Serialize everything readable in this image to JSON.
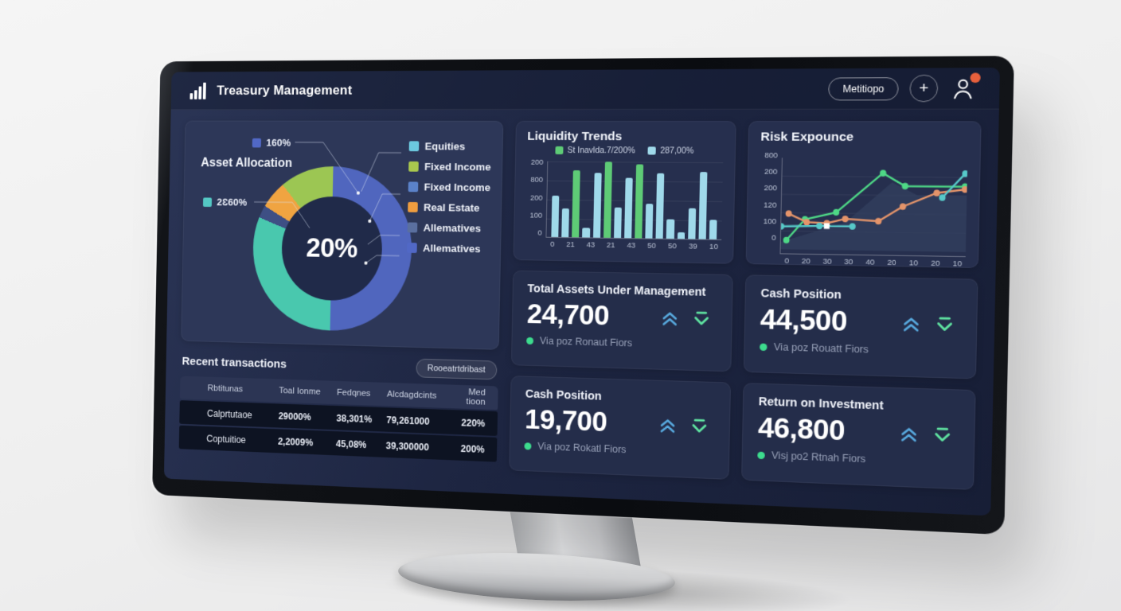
{
  "topbar": {
    "title": "Treasury Management",
    "pill_button": "Metitiopo",
    "plus_button": "+"
  },
  "asset_allocation": {
    "title": "Asset Allocation",
    "center_value": "20%",
    "callouts": [
      {
        "label": "160%",
        "color": "#5168c6"
      },
      {
        "label": "2Ɛ60%",
        "color": "#54c8c4"
      }
    ],
    "legend": [
      {
        "label": "Equities",
        "color": "#6cc9df"
      },
      {
        "label": "Fixed Income",
        "color": "#a9c84e"
      },
      {
        "label": "Fixed Income",
        "color": "#5b82c9"
      },
      {
        "label": "Real Estate",
        "color": "#ef9d3f"
      },
      {
        "label": "Allematives",
        "color": "#5a6f9f"
      },
      {
        "label": "Allematives",
        "color": "#5168c6"
      }
    ]
  },
  "chart_data": [
    {
      "id": "asset_allocation_donut",
      "type": "pie",
      "title": "Asset Allocation",
      "center_label": "20%",
      "segments": [
        {
          "name": "blue",
          "value": 50,
          "color": "#5066be"
        },
        {
          "name": "teal",
          "value": 31,
          "color": "#49c8ae"
        },
        {
          "name": "slate",
          "value": 2.5,
          "color": "#3e4f84"
        },
        {
          "name": "orange",
          "value": 5.5,
          "color": "#f0a441"
        },
        {
          "name": "green",
          "value": 11,
          "color": "#9cc653"
        }
      ]
    },
    {
      "id": "liquidity_trends",
      "type": "bar",
      "title": "Liquidity Trends",
      "legend": [
        {
          "label": "St Inavlda.7/200%",
          "color": "#5ecb76"
        },
        {
          "label": "287,00%",
          "color": "#9fd9ea"
        }
      ],
      "ylim": [
        0,
        200
      ],
      "y_ticks": [
        "200",
        "800",
        "200",
        "100",
        "0"
      ],
      "x_ticks": [
        "0",
        "21",
        "43",
        "21",
        "43",
        "50",
        "50",
        "39",
        "10"
      ],
      "values": [
        110,
        76,
        176,
        26,
        170,
        200,
        80,
        158,
        194,
        90,
        170,
        50,
        16,
        80,
        174,
        50
      ],
      "colors": [
        "blue",
        "blue",
        "green",
        "blue",
        "blue",
        "green",
        "blue",
        "blue",
        "green",
        "blue",
        "blue",
        "blue",
        "blue",
        "blue",
        "blue",
        "blue"
      ]
    },
    {
      "id": "risk_exposure",
      "type": "line",
      "title": "Risk Expounce",
      "y_ticks": [
        "800",
        "200",
        "200",
        "120",
        "100",
        "0"
      ],
      "x_ticks": [
        "0",
        "20",
        "30",
        "30",
        "40",
        "20",
        "10",
        "20",
        "10"
      ],
      "area": {
        "color": "#33405f",
        "points": [
          [
            0,
            8
          ],
          [
            35,
            30
          ],
          [
            60,
            74
          ],
          [
            74,
            60
          ],
          [
            100,
            60
          ]
        ]
      },
      "series": [
        {
          "name": "green",
          "color": "#4ed886",
          "points": [
            [
              3,
              10
            ],
            [
              13,
              33
            ],
            [
              30,
              41
            ],
            [
              55,
              84
            ],
            [
              67,
              70
            ],
            [
              99,
              70
            ]
          ]
        },
        {
          "name": "orange",
          "color": "#e4946a",
          "points": [
            [
              4,
              39
            ],
            [
              14,
              30
            ],
            [
              25,
              29
            ],
            [
              35,
              34
            ],
            [
              53,
              32
            ],
            [
              66,
              48
            ],
            [
              84,
              63
            ],
            [
              99,
              67
            ]
          ]
        },
        {
          "name": "teal",
          "color": "#57c9c9",
          "points": [
            [
              0,
              25
            ],
            [
              21,
              26
            ],
            [
              39,
              26
            ]
          ]
        },
        {
          "name": "teal2",
          "color": "#57c9c9",
          "points": [
            [
              87,
              58
            ],
            [
              99,
              84
            ]
          ]
        }
      ],
      "white_marker": {
        "x": 25,
        "y": 26
      }
    }
  ],
  "kpis": [
    {
      "title": "Total Assets Under Management",
      "value": "24,700",
      "subtitle": "Via poz Ronaut Fiors"
    },
    {
      "title": "Cash Position",
      "value": "44,500",
      "subtitle": "Via poz Rouatt Fiors"
    },
    {
      "title": "Cash Position",
      "value": "19,700",
      "subtitle": "Via poz Rokatl Fiors"
    },
    {
      "title": "Return on Investment",
      "value": "46,800",
      "subtitle": "Visj po2 Rtnah Fiors"
    }
  ],
  "transactions": {
    "title": "Recent transactions",
    "action_button": "Rooeatrtdribast",
    "columns": [
      "Rbtitunas",
      "Toal Ionme",
      "Fedqnes",
      "Alcdagdcints",
      "Med tioon"
    ],
    "rows": [
      [
        "Calprtutaoe",
        "29000%",
        "38,301%",
        "79,261000",
        "220%"
      ],
      [
        "Coptuitioe",
        "2,2009%",
        "45,08%",
        "39,300000",
        "200%"
      ]
    ]
  },
  "colors": {
    "trend_up": "#57a8dd",
    "trend_down": "#5fe3a1",
    "badge": "#e8603c",
    "green_dot": "#3ddc8e"
  }
}
